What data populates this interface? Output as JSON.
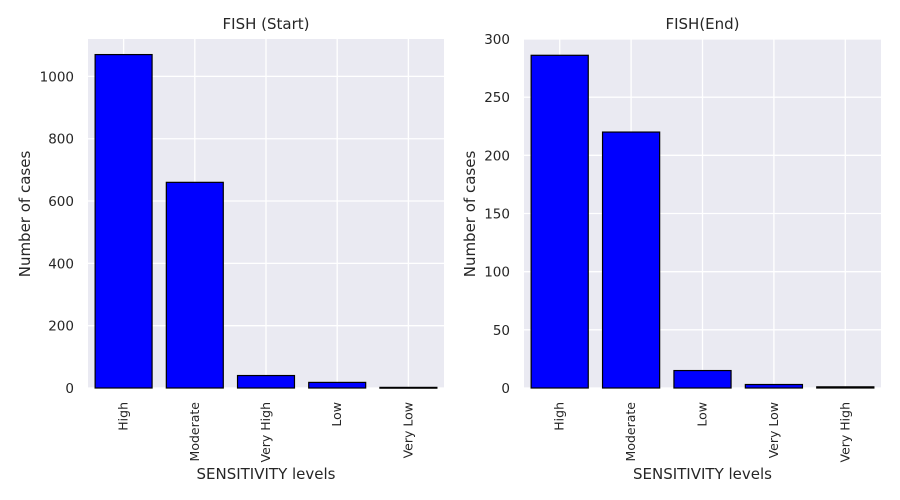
{
  "chart_data": [
    {
      "type": "bar",
      "title": "FISH (Start)",
      "xlabel": "SENSITIVITY levels",
      "ylabel": "Number of cases",
      "categories": [
        "High",
        "Moderate",
        "Very High",
        "Low",
        "Very Low"
      ],
      "values": [
        1070,
        660,
        40,
        18,
        2
      ],
      "ylim": [
        0,
        1120
      ],
      "yticks": [
        0,
        200,
        400,
        600,
        800,
        1000
      ],
      "grid": true,
      "bar_color": "#0000ff",
      "bar_edge_color": "#000000",
      "background_color": "#eaeaf2"
    },
    {
      "type": "bar",
      "title": "FISH(End)",
      "xlabel": "SENSITIVITY levels",
      "ylabel": "Number of cases",
      "categories": [
        "High",
        "Moderate",
        "Low",
        "Very Low",
        "Very High"
      ],
      "values": [
        286,
        220,
        15,
        3,
        1
      ],
      "ylim": [
        0,
        300
      ],
      "yticks": [
        0,
        50,
        100,
        150,
        200,
        250,
        300
      ],
      "grid": true,
      "bar_color": "#0000ff",
      "bar_edge_color": "#000000",
      "background_color": "#eaeaf2"
    }
  ]
}
